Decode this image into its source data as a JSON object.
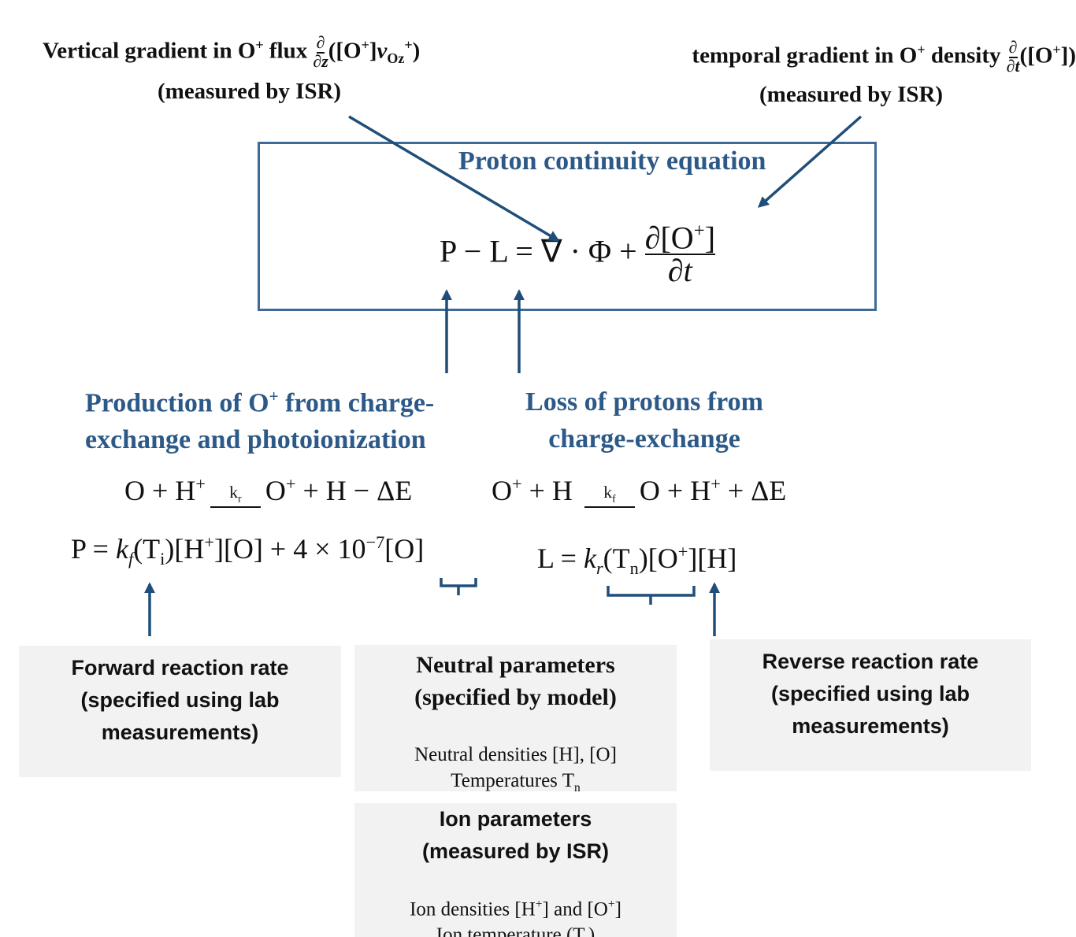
{
  "top_left": {
    "line1": [
      "Vertical gradient in O",
      "+",
      " flux "
    ],
    "frac": [
      "∂",
      "∂z"
    ],
    "expr": [
      "([O",
      "+",
      "]",
      "v",
      "Oz",
      "+",
      ")"
    ],
    "note": "(measured by ISR)"
  },
  "top_right": {
    "line1": [
      "temporal gradient in O",
      "+",
      " density "
    ],
    "frac": [
      "∂",
      "∂t"
    ],
    "expr": [
      "([O",
      "+",
      "])"
    ],
    "note": "(measured by ISR)"
  },
  "box": {
    "title": "Proton continuity equation",
    "equation": {
      "lhs": "P − L = ∇ · Φ + ",
      "num": [
        "∂[O",
        "+",
        "]"
      ],
      "den": "∂t"
    }
  },
  "production": {
    "title": [
      "Production of O",
      "+",
      " from charge-",
      "exchange and photoionization"
    ]
  },
  "loss": {
    "title": [
      "Loss of protons from",
      "charge-exchange"
    ]
  },
  "reaction1": [
    "O + H",
    "+",
    "k",
    "r",
    "O",
    "+",
    " + H − ΔE"
  ],
  "reaction2": [
    "O",
    "+",
    " + H ",
    "k",
    "f",
    "O + H",
    "+",
    " + ΔE"
  ],
  "p_equation": [
    "P = ",
    "k",
    "f",
    "(T",
    "i",
    ")[H",
    "+",
    "][O] + 4 × 10",
    "−7",
    "[O]"
  ],
  "l_equation": [
    "L = ",
    "k",
    "r",
    "(T",
    "n",
    ")[O",
    "+",
    "][H]"
  ],
  "forward": [
    "Forward reaction rate",
    "(specified using lab",
    "measurements)"
  ],
  "neutral": {
    "title": [
      "Neutral parameters",
      "(specified by model)"
    ],
    "lines": [
      "Neutral densities [H], [O]",
      "Temperatures T",
      "n"
    ]
  },
  "reverse": [
    "Reverse reaction rate",
    "(specified using lab",
    "measurements)"
  ],
  "ion": {
    "title": [
      "Ion parameters",
      "(measured by ISR)"
    ],
    "lines": [
      "Ion densities [H",
      "+",
      "] and [O",
      "+",
      "]",
      "Ion temperature (T",
      "i",
      ")"
    ]
  }
}
